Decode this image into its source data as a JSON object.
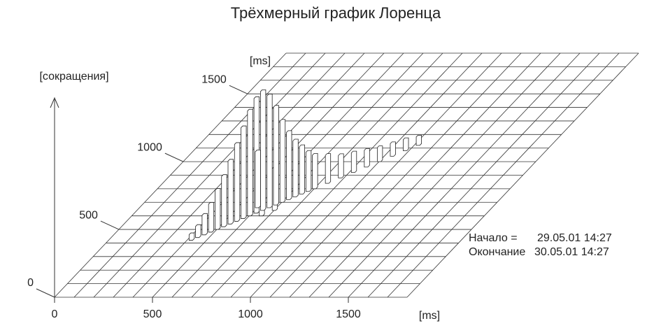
{
  "chart_data": {
    "type": "lorenz3d",
    "title": "Трёхмерный график Лоренца",
    "x_unit": "[ms]",
    "y_unit": "[ms]",
    "z_label": "[сокращения]",
    "xlim": [
      0,
      1800
    ],
    "ylim": [
      0,
      1800
    ],
    "zlim": [
      0,
      100
    ],
    "xticks": [
      0,
      500,
      1000,
      1500
    ],
    "yticks": [
      0,
      500,
      1000,
      1500
    ],
    "grid": true,
    "grid_step": 100,
    "color": "#ffffff",
    "x": [
      1120,
      1080,
      1040,
      1000,
      960,
      920,
      880,
      840,
      800,
      780,
      760,
      740,
      720,
      700,
      700,
      680,
      660,
      660,
      640,
      620,
      600,
      600,
      580,
      560,
      540,
      520,
      500,
      480,
      460,
      440,
      420
    ],
    "y": [
      1120,
      1080,
      1040,
      1000,
      960,
      920,
      880,
      840,
      800,
      780,
      760,
      740,
      720,
      700,
      640,
      680,
      660,
      600,
      640,
      620,
      600,
      660,
      580,
      560,
      540,
      520,
      500,
      480,
      460,
      440,
      420
    ],
    "values": [
      6,
      8,
      9,
      10,
      12,
      14,
      16,
      20,
      24,
      28,
      34,
      40,
      48,
      58,
      30,
      70,
      80,
      40,
      85,
      82,
      75,
      40,
      65,
      55,
      45,
      36,
      28,
      20,
      14,
      8,
      4
    ],
    "annotations": [
      {
        "label": "Начало =",
        "value": "29.05.01 14:27"
      },
      {
        "label": "Окончание",
        "value": "30.05.01 14:27"
      }
    ]
  }
}
